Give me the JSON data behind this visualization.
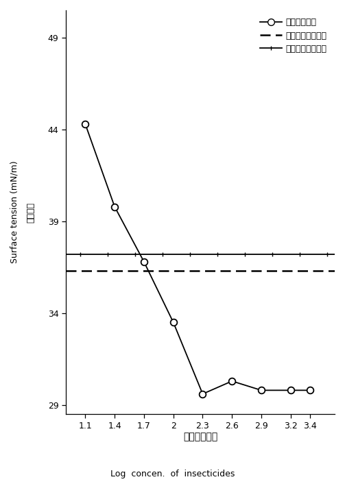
{
  "x_values": [
    1.1,
    1.4,
    1.7,
    2.0,
    2.3,
    2.6,
    2.9,
    3.2,
    3.4
  ],
  "y_values": [
    44.3,
    39.8,
    36.8,
    33.5,
    29.6,
    30.3,
    29.8,
    29.8,
    29.8
  ],
  "hline_cabbage": 36.3,
  "hline_rice": 37.2,
  "x_ticks": [
    1.1,
    1.4,
    1.7,
    2.0,
    2.3,
    2.6,
    2.9,
    3.2,
    3.4
  ],
  "x_tick_labels": [
    "1.1",
    "1.4",
    "1.7",
    "2",
    "2.3",
    "2.6",
    "2.9",
    "3.2",
    "3.4"
  ],
  "y_ticks": [
    29,
    34,
    39,
    44,
    49
  ],
  "ylim": [
    28.5,
    50.5
  ],
  "xlim": [
    0.9,
    3.65
  ],
  "ylabel_cn": "表面张力",
  "ylabel_en": "Surface tension (mN/m)",
  "xlabel_cn": "药剂浓度对数",
  "xlabel_en": "Log  concen.  of  insecticides",
  "legend_line1": "杀虫单微乳剂",
  "legend_line2": "甘蓝临界表面张力",
  "legend_line3": "水稻临界表面张力",
  "line_color": "black",
  "background_color": "white"
}
